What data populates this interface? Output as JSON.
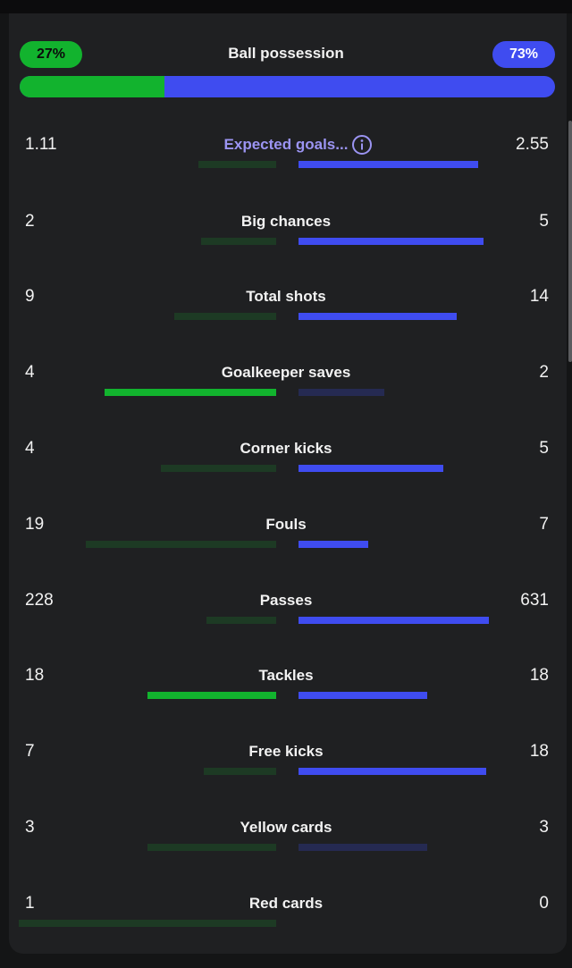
{
  "colors": {
    "home_strong": "#12b32e",
    "home_dim": "#1d3a24",
    "away_strong": "#3f4cf0",
    "away_dim": "#252a52"
  },
  "possession": {
    "title": "Ball possession",
    "home_label": "27%",
    "away_label": "73%",
    "home_fraction": 0.27
  },
  "stats": [
    {
      "label": "Expected goals...",
      "home": "1.11",
      "away": "2.55",
      "home_bar": 0.29,
      "away_bar": 0.67,
      "leader": "away",
      "has_info": true,
      "link": true
    },
    {
      "label": "Big chances",
      "home": "2",
      "away": "5",
      "home_bar": 0.28,
      "away_bar": 0.69,
      "leader": "away"
    },
    {
      "label": "Total shots",
      "home": "9",
      "away": "14",
      "home_bar": 0.38,
      "away_bar": 0.59,
      "leader": "away"
    },
    {
      "label": "Goalkeeper saves",
      "home": "4",
      "away": "2",
      "home_bar": 0.64,
      "away_bar": 0.32,
      "leader": "home"
    },
    {
      "label": "Corner kicks",
      "home": "4",
      "away": "5",
      "home_bar": 0.43,
      "away_bar": 0.54,
      "leader": "away"
    },
    {
      "label": "Fouls",
      "home": "19",
      "away": "7",
      "home_bar": 0.71,
      "away_bar": 0.26,
      "leader": "away"
    },
    {
      "label": "Passes",
      "home": "228",
      "away": "631",
      "home_bar": 0.26,
      "away_bar": 0.71,
      "leader": "away"
    },
    {
      "label": "Tackles",
      "home": "18",
      "away": "18",
      "home_bar": 0.48,
      "away_bar": 0.48,
      "leader": "both"
    },
    {
      "label": "Free kicks",
      "home": "7",
      "away": "18",
      "home_bar": 0.27,
      "away_bar": 0.7,
      "leader": "away"
    },
    {
      "label": "Yellow cards",
      "home": "3",
      "away": "3",
      "home_bar": 0.48,
      "away_bar": 0.48,
      "leader": "none"
    },
    {
      "label": "Red cards",
      "home": "1",
      "away": "0",
      "home_bar": 0.96,
      "away_bar": 0,
      "leader": "none"
    }
  ]
}
